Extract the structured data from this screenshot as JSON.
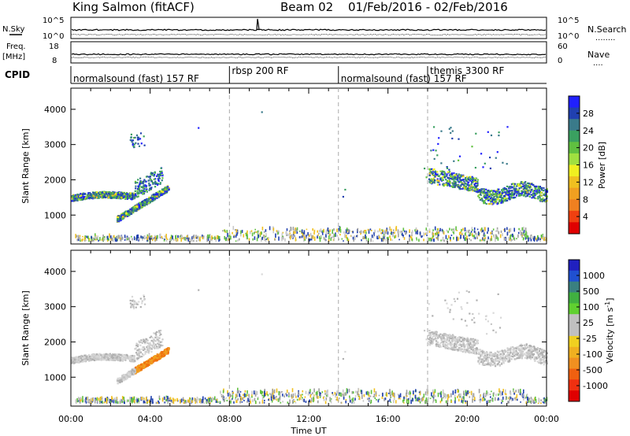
{
  "header": {
    "title": "King Salmon (fitACF)",
    "beam": "Beam 02",
    "date_range": "01/Feb/2016 - 02/Feb/2016"
  },
  "top_panels": {
    "nsky": {
      "left_label": "N.Sky",
      "left_ticks": [
        "10^5",
        "10^0"
      ],
      "right_ticks": [
        "10^5",
        "10^0"
      ],
      "right_label": "N.Search",
      "right_legend": "........"
    },
    "freq": {
      "left_label": "Freq.",
      "left_unit": "[MHz]",
      "left_ticks": [
        "18",
        "8"
      ],
      "right_ticks": [
        "60",
        "0"
      ],
      "right_label": "Nave",
      "right_legend": "...."
    },
    "cpid": {
      "label": "CPID",
      "segments": [
        {
          "name": "normalsound (fast) 157 RF",
          "start": 0,
          "end": 8.0
        },
        {
          "name": "rbsp 200 RF",
          "start": 8.0,
          "end": 13.5
        },
        {
          "name": "normalsound (fast) 157 RF",
          "start": 13.5,
          "end": 18.0
        },
        {
          "name": "themis 3300 RF",
          "start": 18.0,
          "end": 24.0
        }
      ]
    }
  },
  "chart_data": [
    {
      "type": "heatmap",
      "name": "power",
      "ylabel": "Slant Range [km]",
      "yticks": [
        1000,
        2000,
        3000,
        4000
      ],
      "ylim": [
        180,
        4600
      ],
      "xlim": [
        0,
        24
      ],
      "colorbar": {
        "label": "Power [dB]",
        "ticks": [
          "28",
          "24",
          "20",
          "16",
          "12",
          "8",
          "4"
        ],
        "colors": [
          "#2020ff",
          "#2040b0",
          "#3a7a8a",
          "#3aa060",
          "#60c040",
          "#a0e040",
          "#f0f020",
          "#f0c020",
          "#f0a020",
          "#f08020",
          "#f04010",
          "#e00000"
        ]
      },
      "vlines": [
        8.0,
        13.5,
        18.0
      ]
    },
    {
      "type": "heatmap",
      "name": "velocity",
      "ylabel": "Slant Range [km]",
      "yticks": [
        1000,
        2000,
        3000,
        4000
      ],
      "ylim": [
        180,
        4600
      ],
      "xlim": [
        0,
        24
      ],
      "colorbar": {
        "label": "Velocity [m s^-1]",
        "ticks": [
          "1000",
          "500",
          "100",
          "25",
          "-25",
          "-100",
          "-500",
          "-1000"
        ],
        "colors": [
          "#2020c0",
          "#2050d0",
          "#3a8080",
          "#40b040",
          "#60d030",
          "#c0c0c0",
          "#c0c0c0",
          "#f0d020",
          "#f0b020",
          "#f09020",
          "#f06010",
          "#f03010",
          "#e00000"
        ]
      },
      "vlines": [
        8.0,
        13.5,
        18.0
      ]
    }
  ],
  "xaxis": {
    "label": "Time UT",
    "ticks": [
      {
        "v": 0,
        "label": "00:00"
      },
      {
        "v": 4,
        "label": "04:00"
      },
      {
        "v": 8,
        "label": "08:00"
      },
      {
        "v": 12,
        "label": "12:00"
      },
      {
        "v": 16,
        "label": "16:00"
      },
      {
        "v": 20,
        "label": "20:00"
      },
      {
        "v": 24,
        "label": "00:00"
      }
    ]
  },
  "palettes": {
    "power_scatter": [
      "#2020ff",
      "#2040b0",
      "#3a7a8a",
      "#3aa060",
      "#60c040"
    ],
    "power_bright": [
      "#a0e040",
      "#f0f020",
      "#f0c020"
    ],
    "vel_grey": [
      "#c8c8c8",
      "#b0b0b0",
      "#d8d8d8"
    ],
    "vel_orange": [
      "#f09020",
      "#f0a020",
      "#f07010"
    ],
    "noise": [
      "#a0a0a0",
      "#f0c020",
      "#60c040",
      "#2040b0",
      "#c8c8c8"
    ]
  }
}
